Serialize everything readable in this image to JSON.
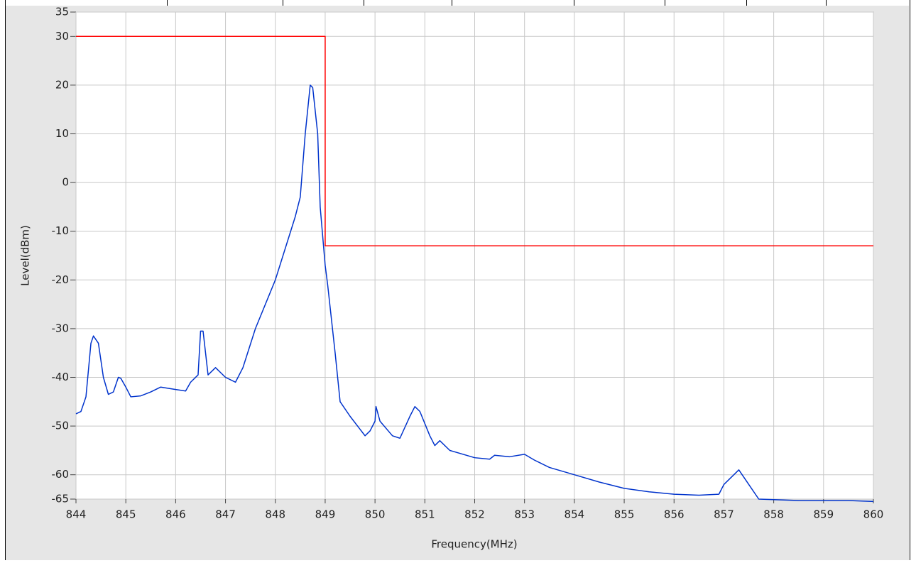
{
  "chart_data": {
    "type": "line",
    "xlabel": "Frequency(MHz)",
    "ylabel": "Level(dBm)",
    "xlim": [
      844,
      860
    ],
    "ylim": [
      -65,
      35
    ],
    "xticks": [
      844,
      845,
      846,
      847,
      848,
      849,
      850,
      851,
      852,
      853,
      854,
      855,
      856,
      857,
      858,
      859,
      860
    ],
    "yticks": [
      35,
      30,
      20,
      10,
      0,
      -10,
      -20,
      -30,
      -40,
      -50,
      -60,
      -65
    ],
    "grid": true,
    "series": [
      {
        "color": "#ff0000",
        "x": [
          844,
          849,
          849,
          860
        ],
        "values": [
          30,
          30,
          -13,
          -13
        ]
      },
      {
        "color": "#0033cc",
        "x": [
          844.0,
          844.1,
          844.2,
          844.3,
          844.35,
          844.45,
          844.55,
          844.65,
          844.75,
          844.85,
          844.9,
          845.0,
          845.1,
          845.3,
          845.5,
          845.7,
          846.0,
          846.2,
          846.3,
          846.45,
          846.5,
          846.55,
          846.6,
          846.65,
          846.8,
          847.0,
          847.2,
          847.35,
          847.6,
          848.0,
          848.4,
          848.5,
          848.6,
          848.7,
          848.75,
          848.85,
          848.9,
          849.0,
          849.05,
          849.2,
          849.3,
          849.5,
          849.8,
          849.9,
          850.0,
          850.02,
          850.1,
          850.35,
          850.5,
          850.7,
          850.8,
          850.9,
          851.1,
          851.2,
          851.3,
          851.5,
          852.0,
          852.3,
          852.4,
          852.7,
          853.0,
          853.2,
          853.5,
          854.0,
          854.5,
          855.0,
          855.5,
          856.0,
          856.5,
          856.9,
          857.0,
          857.3,
          857.5,
          857.7,
          858.5,
          859.5,
          860.0
        ],
        "values": [
          -47.5,
          -47,
          -44,
          -33,
          -31.5,
          -33,
          -40,
          -43.5,
          -43,
          -40,
          -40.2,
          -42,
          -44,
          -43.8,
          -43,
          -42,
          -42.5,
          -42.8,
          -41,
          -39.5,
          -30.5,
          -30.5,
          -35,
          -39.5,
          -38,
          -40,
          -41,
          -38,
          -30,
          -20,
          -7,
          -3,
          10,
          20,
          19.5,
          10,
          -5,
          -17,
          -21,
          -35,
          -45,
          -48,
          -52,
          -51,
          -49,
          -46,
          -49,
          -52,
          -52.5,
          -48,
          -46,
          -47,
          -52,
          -54,
          -53,
          -55,
          -56.5,
          -56.8,
          -56,
          -56.3,
          -55.8,
          -57,
          -58.5,
          -60,
          -61.5,
          -62.8,
          -63.5,
          -64,
          -64.2,
          -64,
          -62,
          -59,
          -62,
          -65,
          -65.3,
          -65.3,
          -65.5
        ]
      }
    ]
  }
}
